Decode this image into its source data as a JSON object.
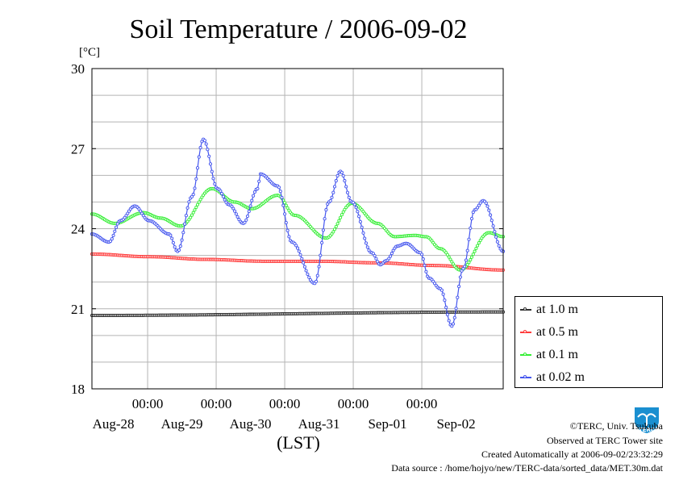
{
  "chart_data": {
    "type": "line",
    "title": "Soil Temperature / 2006-09-02",
    "ylabel": "[°C]",
    "xlabel": "(LST)",
    "ylim": [
      18,
      30
    ],
    "xlim": [
      0,
      144
    ],
    "yticks": [
      18,
      21,
      24,
      27,
      30
    ],
    "ytick_labels": [
      "18",
      "21",
      "24",
      "27",
      "30"
    ],
    "x_midnight_ticks": [
      19.5,
      43.5,
      67.5,
      91.5,
      115.5
    ],
    "x_midnight_labels": [
      "00:00",
      "00:00",
      "00:00",
      "00:00",
      "00:00"
    ],
    "x_day_label_positions": [
      7.5,
      31.5,
      55.5,
      79.5,
      103.5,
      127.5
    ],
    "x_day_labels": [
      "Aug-28",
      "Aug-29",
      "Aug-30",
      "Aug-31",
      "Sep-01",
      "Sep-02"
    ],
    "grid": true,
    "legend_position": "bottom-right outside",
    "series": [
      {
        "name": "at 1.0 m",
        "color": "#303030",
        "points": [
          [
            0,
            20.75
          ],
          [
            144,
            20.88
          ]
        ]
      },
      {
        "name": "at 0.5 m",
        "color": "#ff3b3b",
        "points": [
          [
            0,
            23.05
          ],
          [
            20,
            22.95
          ],
          [
            40,
            22.85
          ],
          [
            60,
            22.78
          ],
          [
            80,
            22.78
          ],
          [
            100,
            22.72
          ],
          [
            120,
            22.62
          ],
          [
            144,
            22.45
          ]
        ]
      },
      {
        "name": "at 0.1 m",
        "color": "#33ee33",
        "points": [
          [
            0,
            24.55
          ],
          [
            8,
            24.2
          ],
          [
            18,
            24.6
          ],
          [
            24,
            24.4
          ],
          [
            31,
            24.1
          ],
          [
            42,
            25.5
          ],
          [
            50,
            25.0
          ],
          [
            56,
            24.75
          ],
          [
            65,
            25.25
          ],
          [
            71,
            24.5
          ],
          [
            82,
            23.65
          ],
          [
            91,
            24.95
          ],
          [
            100,
            24.2
          ],
          [
            106,
            23.7
          ],
          [
            113,
            23.75
          ],
          [
            117,
            23.7
          ],
          [
            122,
            23.25
          ],
          [
            129,
            22.45
          ],
          [
            139,
            23.85
          ],
          [
            144,
            23.7
          ]
        ]
      },
      {
        "name": "at 0.02 m",
        "color": "#4455ee",
        "points": [
          [
            0,
            23.8
          ],
          [
            6,
            23.5
          ],
          [
            10,
            24.3
          ],
          [
            15,
            24.85
          ],
          [
            20,
            24.3
          ],
          [
            27,
            23.8
          ],
          [
            30,
            23.15
          ],
          [
            35,
            25.2
          ],
          [
            39,
            27.35
          ],
          [
            44,
            25.5
          ],
          [
            48,
            24.9
          ],
          [
            53,
            24.2
          ],
          [
            58,
            25.5
          ],
          [
            59,
            26.05
          ],
          [
            65,
            25.6
          ],
          [
            70,
            23.5
          ],
          [
            78,
            21.95
          ],
          [
            83,
            25.0
          ],
          [
            87,
            26.15
          ],
          [
            91,
            25.0
          ],
          [
            98,
            23.1
          ],
          [
            101,
            22.65
          ],
          [
            103,
            22.8
          ],
          [
            107,
            23.35
          ],
          [
            110,
            23.45
          ],
          [
            115,
            23.1
          ],
          [
            118,
            22.15
          ],
          [
            122,
            21.75
          ],
          [
            126,
            20.35
          ],
          [
            130,
            22.5
          ],
          [
            134,
            24.7
          ],
          [
            137,
            25.05
          ],
          [
            144,
            23.15
          ]
        ]
      }
    ]
  },
  "legend": {
    "items": [
      {
        "label": "at 1.0 m",
        "color": "#303030"
      },
      {
        "label": "at 0.5 m",
        "color": "#ff3b3b"
      },
      {
        "label": "at 0.1 m",
        "color": "#33ee33"
      },
      {
        "label": "at 0.02 m",
        "color": "#4455ee"
      }
    ]
  },
  "credits": {
    "copyright": "©TERC, Univ. Tsukuba",
    "observed": "Observed at TERC Tower site",
    "created": "Created Automatically at 2006-09-02/23:32:29",
    "source": "Data source : /home/hojyo/new/TERC-data/sorted_data/MET.30m.dat"
  },
  "logo": {
    "text": "TERC",
    "color": "#1a8fd0"
  }
}
